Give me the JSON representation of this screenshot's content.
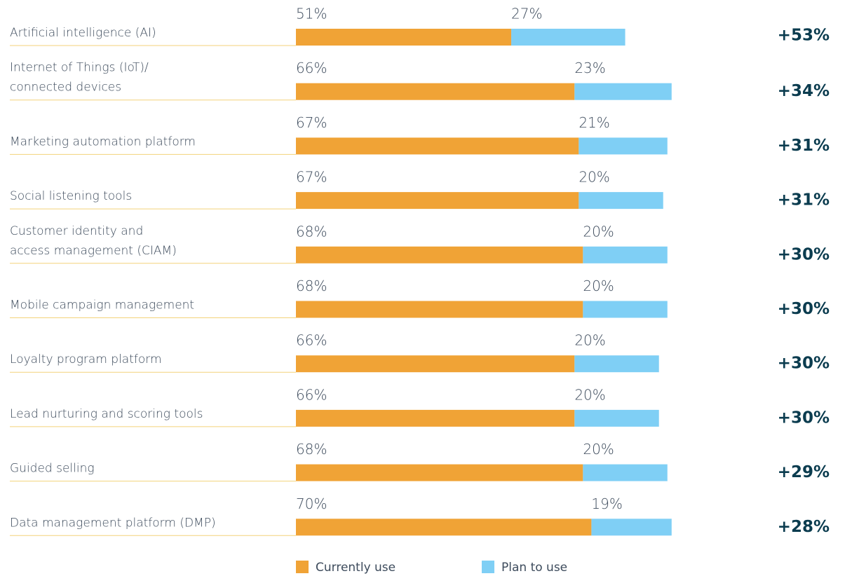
{
  "chart_data": {
    "type": "stacked-bar",
    "categories": [
      [
        "Artificial intelligence (AI)"
      ],
      [
        "Internet of Things (IoT)/",
        "connected devices"
      ],
      [
        "Marketing automation platform"
      ],
      [
        "Social listening tools"
      ],
      [
        "Customer identity and",
        "access management (CIAM)"
      ],
      [
        "Mobile campaign management"
      ],
      [
        "Loyalty program platform"
      ],
      [
        "Lead nurturing and scoring tools"
      ],
      [
        "Guided selling"
      ],
      [
        "Data management platform (DMP)"
      ]
    ],
    "series": [
      {
        "name": "Currently use",
        "color": "#f0a336",
        "values": [
          51,
          66,
          67,
          67,
          68,
          68,
          66,
          66,
          68,
          70
        ],
        "value_labels": [
          "51%",
          "66%",
          "67%",
          "67%",
          "68%",
          "68%",
          "66%",
          "66%",
          "68%",
          "70%"
        ]
      },
      {
        "name": "Plan to use",
        "color": "#7fcff5",
        "values": [
          27,
          23,
          21,
          20,
          20,
          20,
          20,
          20,
          20,
          19
        ],
        "value_labels": [
          "27%",
          "23%",
          "21%",
          "20%",
          "20%",
          "20%",
          "20%",
          "20%",
          "20%",
          "19%"
        ]
      }
    ],
    "annotations": [
      "+53%",
      "+34%",
      "+31%",
      "+31%",
      "+30%",
      "+30%",
      "+30%",
      "+30%",
      "+29%",
      "+28%"
    ]
  }
}
